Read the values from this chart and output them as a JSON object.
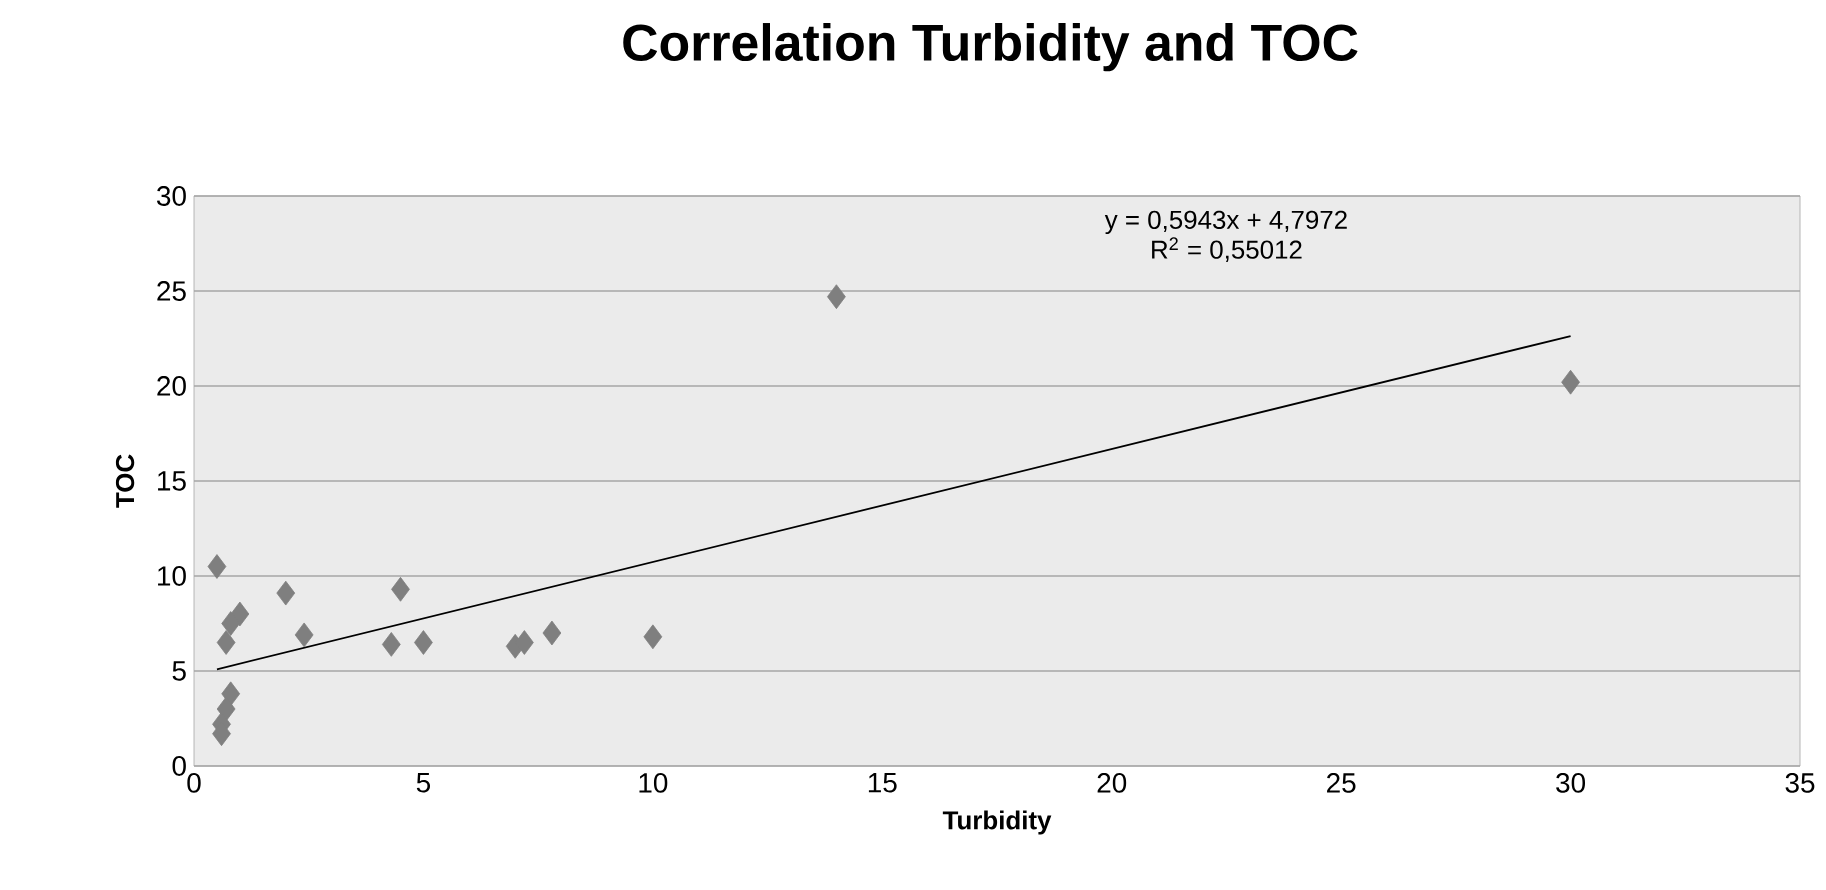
{
  "chart_data": {
    "type": "scatter",
    "title": "Correlation Turbidity and TOC",
    "xlabel": "Turbidity",
    "ylabel": "TOC",
    "xlim": [
      0,
      35
    ],
    "xticks": [
      0,
      5,
      10,
      15,
      20,
      25,
      30,
      35
    ],
    "ylim": [
      0,
      30
    ],
    "yticks": [
      0,
      5,
      10,
      15,
      20,
      25,
      30
    ],
    "grid": "y",
    "marker": "diamond",
    "series": [
      {
        "color": "#7f7f7f",
        "x": [
          0.5,
          2,
          4.5,
          1,
          0.8,
          2.4,
          0.7,
          4.3,
          5,
          7,
          7.2,
          7.8,
          10,
          0.8,
          0.7,
          0.6,
          0.6,
          14,
          30
        ],
        "values": [
          10.5,
          9.1,
          9.3,
          8,
          7.5,
          6.9,
          6.5,
          6.4,
          6.5,
          6.3,
          6.5,
          7,
          6.8,
          3.8,
          3,
          2.2,
          1.7,
          24.7,
          20.2
        ]
      },
      {
        "type": "line",
        "color": "#000000",
        "marker": "none",
        "x": [
          0.5,
          30
        ],
        "values": [
          5.09,
          22.63
        ]
      }
    ],
    "annotations": [
      "y = 0,5943x + 4,7972",
      "R$^{2}$ = 0,55012"
    ]
  }
}
